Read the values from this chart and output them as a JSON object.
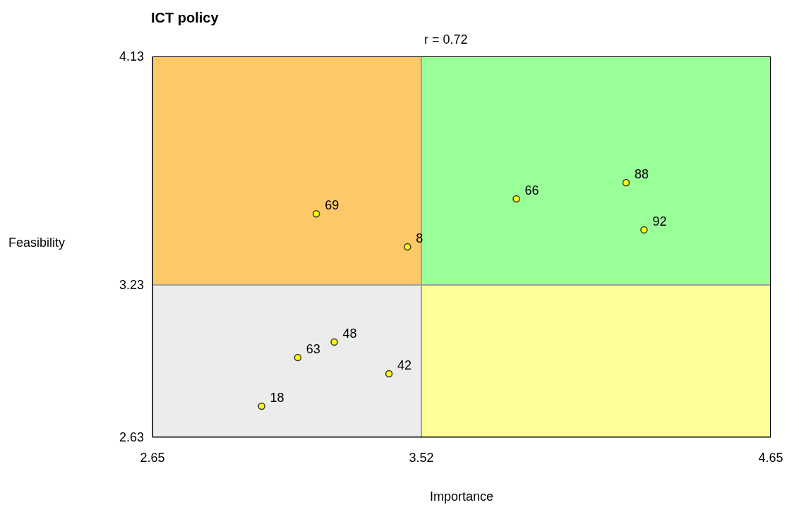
{
  "chart_data": {
    "type": "scatter",
    "title": "ICT policy",
    "xlabel": "Importance",
    "ylabel": "Feasibility",
    "annotations": [
      "r = 0.72",
      {
        "text": "69",
        "x": 3.18,
        "y": 3.51
      },
      {
        "text": "8",
        "x": 3.475,
        "y": 3.38
      },
      {
        "text": "66",
        "x": 3.827,
        "y": 3.569
      },
      {
        "text": "88",
        "x": 4.182,
        "y": 3.633
      },
      {
        "text": "92",
        "x": 4.24,
        "y": 3.447
      },
      {
        "text": "48",
        "x": 3.238,
        "y": 3.005
      },
      {
        "text": "63",
        "x": 3.12,
        "y": 2.944
      },
      {
        "text": "42",
        "x": 3.415,
        "y": 2.88
      },
      {
        "text": "18",
        "x": 3.003,
        "y": 2.752
      }
    ],
    "x": [
      3.18,
      3.475,
      3.827,
      4.182,
      4.24,
      3.238,
      3.12,
      3.415,
      3.003
    ],
    "series": [
      {
        "color": "#ffff00",
        "values": [
          3.51,
          3.38,
          3.569,
          3.633,
          3.447,
          3.005,
          2.944,
          2.88,
          2.752
        ]
      }
    ],
    "marker": "circle",
    "xlim": [
      2.65,
      4.65
    ],
    "xticks": [
      2.65,
      3.52,
      4.65
    ],
    "ylim": [
      2.63,
      4.13
    ],
    "yticks": [
      2.63,
      3.23,
      4.13
    ],
    "ref_lines": [
      {
        "axis": "x",
        "value": 3.52,
        "color": "#a0a0a0"
      },
      {
        "axis": "y",
        "value": 3.23,
        "color": "#a0a0a0"
      }
    ]
  }
}
